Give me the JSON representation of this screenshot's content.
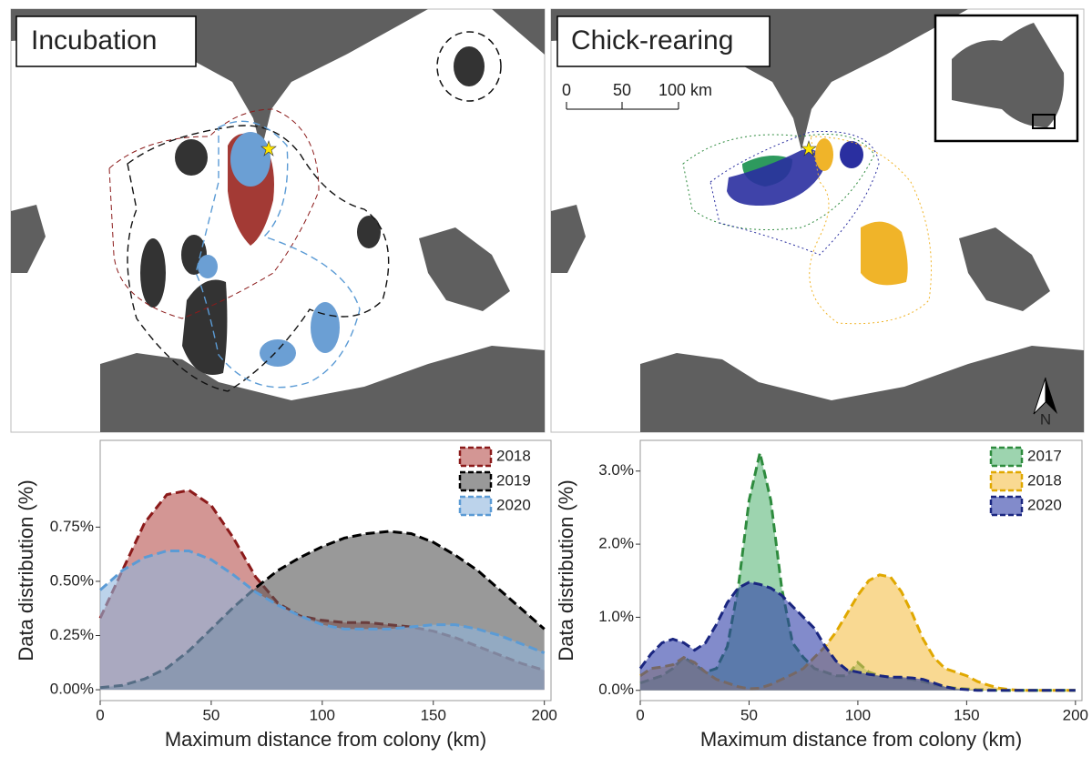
{
  "map": {
    "scale_labels": [
      "0",
      "50",
      "100 km"
    ],
    "north": "N"
  },
  "chart_data": [
    {
      "type": "area",
      "title": "Incubation",
      "x_label": "Maximum distance from colony (km)",
      "y_label": "Data distribution (%)",
      "x": [
        0,
        10,
        20,
        30,
        40,
        50,
        60,
        70,
        80,
        90,
        100,
        110,
        120,
        130,
        140,
        150,
        160,
        170,
        180,
        190,
        200
      ],
      "series": [
        {
          "name": "2018",
          "color": "#b5504d",
          "line_color": "#8b1a1a",
          "values": [
            0.33,
            0.55,
            0.77,
            0.9,
            0.92,
            0.85,
            0.7,
            0.52,
            0.4,
            0.34,
            0.32,
            0.31,
            0.31,
            0.3,
            0.29,
            0.27,
            0.24,
            0.2,
            0.16,
            0.12,
            0.09
          ]
        },
        {
          "name": "2019",
          "color": "#555555",
          "line_color": "#000000",
          "values": [
            0.01,
            0.02,
            0.05,
            0.1,
            0.18,
            0.28,
            0.38,
            0.47,
            0.55,
            0.61,
            0.66,
            0.7,
            0.72,
            0.73,
            0.72,
            0.68,
            0.62,
            0.55,
            0.46,
            0.37,
            0.28
          ]
        },
        {
          "name": "2020",
          "color": "#8fb5dd",
          "line_color": "#5b9bd5",
          "values": [
            0.46,
            0.55,
            0.61,
            0.64,
            0.64,
            0.6,
            0.53,
            0.45,
            0.39,
            0.34,
            0.3,
            0.28,
            0.28,
            0.28,
            0.29,
            0.3,
            0.3,
            0.28,
            0.25,
            0.21,
            0.17
          ]
        }
      ],
      "xlim": [
        0,
        203
      ],
      "ylim": [
        -0.05,
        1.15
      ],
      "xticks": [
        0,
        50,
        100,
        150,
        200
      ],
      "yticks": [
        {
          "value": 0,
          "label": "0.00%"
        },
        {
          "value": 0.25,
          "label": "0.25%"
        },
        {
          "value": 0.5,
          "label": "0.50%"
        },
        {
          "value": 0.75,
          "label": "0.75%"
        }
      ],
      "legend": "top-right"
    },
    {
      "type": "area",
      "title": "Chick-rearing",
      "x_label": "Maximum distance from colony (km)",
      "y_label": "Data distribution (%)",
      "x": [
        0,
        5,
        10,
        15,
        20,
        25,
        30,
        35,
        40,
        45,
        50,
        55,
        60,
        65,
        70,
        75,
        80,
        85,
        90,
        95,
        100,
        105,
        110,
        115,
        120,
        125,
        130,
        135,
        140,
        145,
        150,
        155,
        160,
        165,
        170,
        175,
        180,
        185,
        190,
        195,
        200
      ],
      "series": [
        {
          "name": "2017",
          "color": "#5cb87a",
          "line_color": "#2e8b3e",
          "values": [
            0.1,
            0.15,
            0.2,
            0.3,
            0.45,
            0.35,
            0.25,
            0.3,
            0.6,
            1.4,
            2.6,
            3.25,
            2.6,
            1.4,
            0.65,
            0.45,
            0.3,
            0.25,
            0.2,
            0.2,
            0.38,
            0.25,
            0.2,
            0.18,
            0.17,
            0.15,
            0.12,
            0.08,
            0.05,
            0.03,
            0.02,
            0.01,
            0.01,
            0,
            0,
            0,
            0,
            0,
            0,
            0,
            0
          ]
        },
        {
          "name": "2018",
          "color": "#f5c04a",
          "line_color": "#e0a800",
          "values": [
            0.2,
            0.3,
            0.32,
            0.35,
            0.45,
            0.38,
            0.25,
            0.15,
            0.1,
            0.05,
            0.02,
            0.03,
            0.08,
            0.15,
            0.22,
            0.3,
            0.45,
            0.6,
            0.8,
            1.05,
            1.3,
            1.5,
            1.58,
            1.55,
            1.35,
            1.05,
            0.7,
            0.45,
            0.3,
            0.25,
            0.2,
            0.12,
            0.07,
            0.03,
            0.01,
            0,
            0,
            0,
            0,
            0,
            0
          ]
        },
        {
          "name": "2020",
          "color": "#2f3ea8",
          "line_color": "#1a2680",
          "values": [
            0.3,
            0.5,
            0.65,
            0.7,
            0.65,
            0.55,
            0.65,
            0.9,
            1.2,
            1.4,
            1.48,
            1.45,
            1.4,
            1.3,
            1.15,
            1.0,
            0.85,
            0.6,
            0.4,
            0.28,
            0.25,
            0.22,
            0.2,
            0.18,
            0.18,
            0.17,
            0.15,
            0.1,
            0.05,
            0.02,
            0.01,
            0,
            0,
            0,
            0,
            0,
            0,
            0,
            0,
            0,
            0
          ]
        }
      ],
      "xlim": [
        0,
        203
      ],
      "ylim": [
        -0.14,
        3.42
      ],
      "xticks": [
        0,
        50,
        100,
        150,
        200
      ],
      "yticks": [
        {
          "value": 0,
          "label": "0.0%"
        },
        {
          "value": 1,
          "label": "1.0%"
        },
        {
          "value": 2,
          "label": "2.0%"
        },
        {
          "value": 3,
          "label": "3.0%"
        }
      ],
      "legend": "top-right"
    }
  ]
}
